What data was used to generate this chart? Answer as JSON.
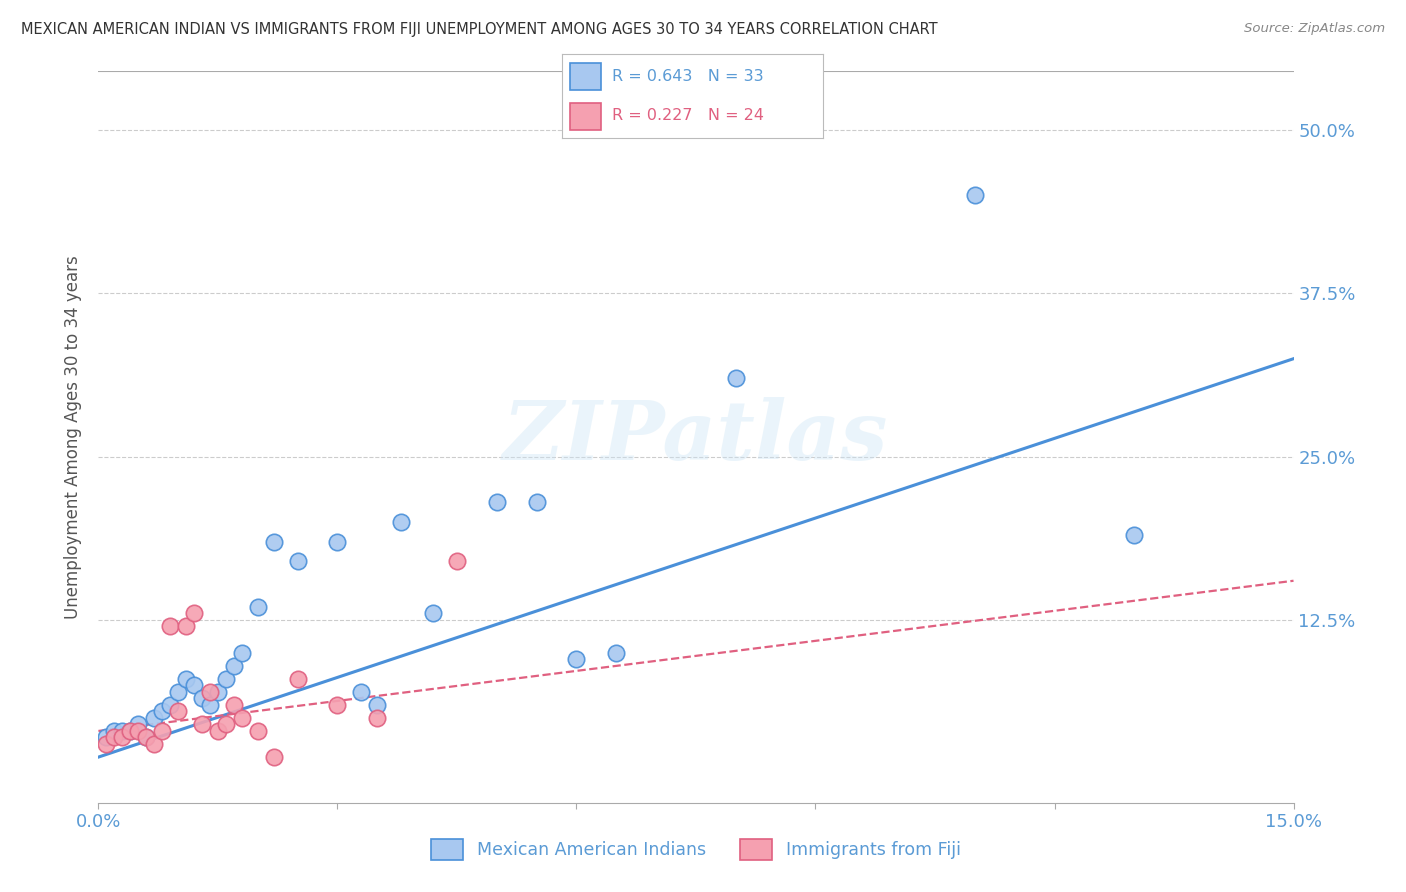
{
  "title": "MEXICAN AMERICAN INDIAN VS IMMIGRANTS FROM FIJI UNEMPLOYMENT AMONG AGES 30 TO 34 YEARS CORRELATION CHART",
  "source": "Source: ZipAtlas.com",
  "ylabel": "Unemployment Among Ages 30 to 34 years",
  "yticks": [
    "50.0%",
    "37.5%",
    "25.0%",
    "12.5%"
  ],
  "ytick_vals": [
    0.5,
    0.375,
    0.25,
    0.125
  ],
  "xlim": [
    0.0,
    0.15
  ],
  "ylim": [
    -0.015,
    0.545
  ],
  "color_blue": "#a8c8f0",
  "color_blue_line": "#4a90d9",
  "color_pink": "#f5a0b0",
  "color_pink_line": "#e06080",
  "color_text": "#5b9bd5",
  "background_color": "#ffffff",
  "watermark": "ZIPatlas",
  "blue_x": [
    0.001,
    0.002,
    0.003,
    0.004,
    0.005,
    0.006,
    0.007,
    0.008,
    0.009,
    0.01,
    0.011,
    0.012,
    0.013,
    0.014,
    0.015,
    0.016,
    0.017,
    0.018,
    0.02,
    0.022,
    0.025,
    0.03,
    0.033,
    0.035,
    0.038,
    0.042,
    0.05,
    0.055,
    0.06,
    0.065,
    0.08,
    0.11,
    0.13
  ],
  "blue_y": [
    0.035,
    0.04,
    0.04,
    0.04,
    0.045,
    0.035,
    0.05,
    0.055,
    0.06,
    0.07,
    0.08,
    0.075,
    0.065,
    0.06,
    0.07,
    0.08,
    0.09,
    0.1,
    0.135,
    0.185,
    0.17,
    0.185,
    0.07,
    0.06,
    0.2,
    0.13,
    0.215,
    0.215,
    0.095,
    0.1,
    0.31,
    0.45,
    0.19
  ],
  "pink_x": [
    0.001,
    0.002,
    0.003,
    0.004,
    0.005,
    0.006,
    0.007,
    0.008,
    0.009,
    0.01,
    0.011,
    0.012,
    0.013,
    0.014,
    0.015,
    0.016,
    0.017,
    0.018,
    0.02,
    0.022,
    0.025,
    0.03,
    0.035,
    0.045
  ],
  "pink_y": [
    0.03,
    0.035,
    0.035,
    0.04,
    0.04,
    0.035,
    0.03,
    0.04,
    0.12,
    0.055,
    0.12,
    0.13,
    0.045,
    0.07,
    0.04,
    0.045,
    0.06,
    0.05,
    0.04,
    0.02,
    0.08,
    0.06,
    0.05,
    0.17
  ],
  "blue_line_x0": 0.0,
  "blue_line_x1": 0.15,
  "blue_line_y0": 0.02,
  "blue_line_y1": 0.325,
  "pink_line_x0": 0.0,
  "pink_line_x1": 0.15,
  "pink_line_y0": 0.04,
  "pink_line_y1": 0.155
}
